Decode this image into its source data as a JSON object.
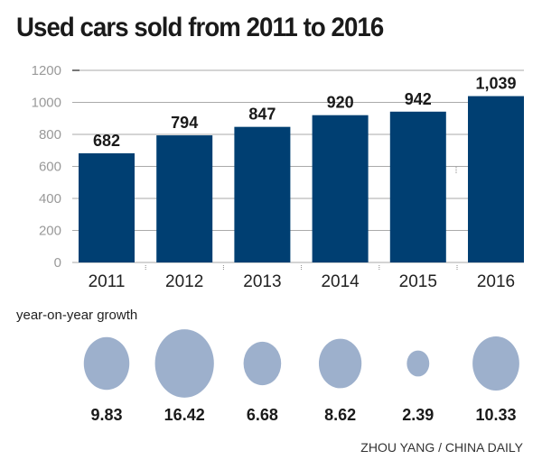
{
  "chart_data": {
    "type": "bar",
    "title": "Used cars sold from 2011 to 2016",
    "categories": [
      "2011",
      "2012",
      "2013",
      "2014",
      "2015",
      "2016"
    ],
    "values": [
      682,
      794,
      847,
      920,
      942,
      1039
    ],
    "data_labels": [
      "682",
      "794",
      "847",
      "920",
      "942",
      "1,039"
    ],
    "ylim": [
      0,
      1200
    ],
    "yticks": [
      0,
      200,
      400,
      600,
      800,
      1000,
      1200
    ],
    "grid": true,
    "bar_color": "#003f72",
    "growth": {
      "label": "year-on-year growth",
      "type": "bubble",
      "values": [
        9.83,
        16.42,
        6.68,
        8.62,
        2.39,
        10.33
      ],
      "color": "#9db0cc"
    }
  },
  "credit": "ZHOU YANG / CHINA DAILY"
}
